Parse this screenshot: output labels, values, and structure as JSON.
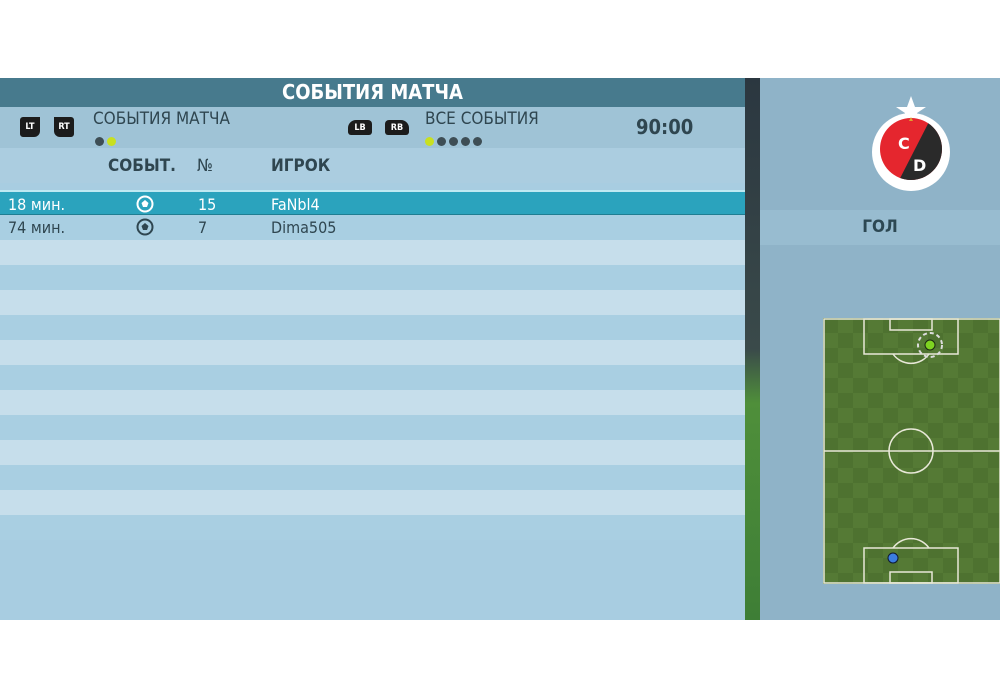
{
  "title": "СОБЫТИЯ МАТЧА",
  "filters": {
    "left_buttons": [
      "LT",
      "RT"
    ],
    "left_label": "СОБЫТИЯ МАТЧА",
    "left_dots_active": 1,
    "left_dots_total": 2,
    "right_buttons": [
      "LB",
      "RB"
    ],
    "right_label": "ВСЕ СОБЫТИЯ",
    "right_dots_active": 0,
    "right_dots_total": 5,
    "time": "90:00"
  },
  "columns": {
    "event": "СОБЫТ.",
    "number": "№",
    "player": "ИГРОК"
  },
  "events": [
    {
      "minute": "18 мин.",
      "icon": "ball-icon",
      "number": "15",
      "player": "FaNbl4",
      "selected": true
    },
    {
      "minute": "74 мин.",
      "icon": "ball-icon",
      "number": "7",
      "player": "Dima505",
      "selected": false
    }
  ],
  "detail": {
    "team_crest": "CUCUTA DEPORTIVO",
    "crest_letters": [
      "C",
      "D"
    ],
    "event_type": "ГОЛ"
  },
  "colors": {
    "accent": "#2ba3bd",
    "title_bar": "#477a8d",
    "active_dot": "#c8e020",
    "scorer_marker": "#7ed321",
    "assist_marker": "#3b7de0"
  }
}
